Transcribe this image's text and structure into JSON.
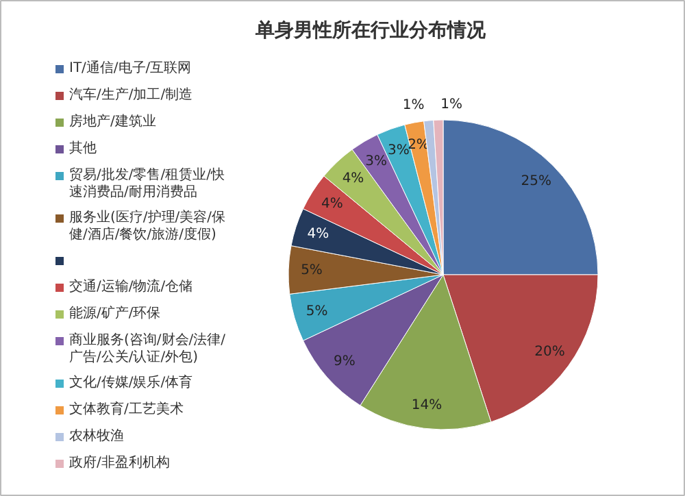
{
  "chart_data": {
    "type": "pie",
    "title": "单身男性所在行业分布情况",
    "categories": [
      "IT/通信/电子/互联网",
      "汽车/生产/加工/制造",
      "房地产/建筑业",
      "其他",
      "贸易/批发/零售/租赁业/快速消费品/耐用消费品",
      "服务业(医疗/护理/美容/保健/酒店/餐饮/旅游/度假)",
      null,
      "交通/运输/物流/仓储",
      "能源/矿产/环保",
      "商业服务(咨询/财会/法律/广告/公关/认证/外包)",
      "文化/传媒/娱乐/体育",
      "文体教育/工艺美术",
      "农林牧渔",
      "政府/非盈利机构"
    ],
    "values": [
      25,
      20,
      14,
      9,
      5,
      5,
      4,
      4,
      4,
      3,
      3,
      2,
      1,
      1
    ],
    "colors": [
      "#4a6fa5",
      "#b04646",
      "#8aa652",
      "#6f5597",
      "#3fa7c2",
      "#8a5a2a",
      "#243a5c",
      "#c84a4a",
      "#a8c262",
      "#8462ac",
      "#44b2ca",
      "#f09a42",
      "#b4c4e2",
      "#e4b4bc"
    ],
    "value_labels": [
      "25%",
      "20%",
      "14%",
      "9%",
      "5%",
      "5%",
      "4%",
      "4%",
      "4%",
      "3%",
      "3%",
      "2%",
      "1%",
      "1%"
    ],
    "legend": "left"
  }
}
